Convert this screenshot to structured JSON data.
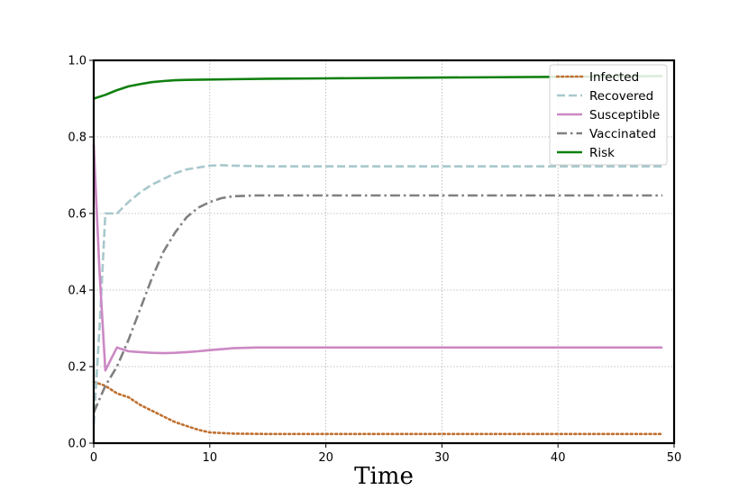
{
  "chart_data": {
    "type": "line",
    "title": "",
    "xlabel": "Time",
    "ylabel": "",
    "xlim": [
      0,
      50
    ],
    "ylim": [
      0,
      1.0
    ],
    "xticks": [
      "0",
      "10",
      "20",
      "30",
      "40",
      "50"
    ],
    "yticks": [
      "0.0",
      "0.2",
      "0.4",
      "0.6",
      "0.8",
      "1.0"
    ],
    "grid": true,
    "legend_position": "top-right",
    "series": [
      {
        "name": "Infected",
        "color": "#c07030",
        "style": "dotted",
        "x": [
          0,
          1,
          2,
          3,
          4,
          5,
          6,
          7,
          8,
          9,
          10,
          12,
          15,
          20,
          30,
          40,
          49
        ],
        "y": [
          0.16,
          0.15,
          0.13,
          0.12,
          0.1,
          0.085,
          0.07,
          0.055,
          0.045,
          0.035,
          0.028,
          0.025,
          0.024,
          0.024,
          0.024,
          0.024,
          0.024
        ]
      },
      {
        "name": "Recovered",
        "color": "#a8c8cc",
        "style": "dashed",
        "x": [
          0,
          0.5,
          1,
          2,
          3,
          4,
          5,
          6,
          7,
          8,
          9,
          10,
          11,
          12,
          15,
          20,
          30,
          40,
          49
        ],
        "y": [
          0.05,
          0.3,
          0.6,
          0.6,
          0.63,
          0.655,
          0.675,
          0.69,
          0.705,
          0.715,
          0.72,
          0.725,
          0.726,
          0.725,
          0.723,
          0.723,
          0.723,
          0.723,
          0.723
        ]
      },
      {
        "name": "Susceptible",
        "color": "#cc88c4",
        "style": "solid",
        "x": [
          0,
          0.5,
          1,
          1.5,
          2,
          3,
          4,
          5,
          6,
          7,
          8,
          9,
          10,
          12,
          14,
          20,
          30,
          40,
          49
        ],
        "y": [
          0.78,
          0.45,
          0.19,
          0.22,
          0.25,
          0.24,
          0.238,
          0.236,
          0.235,
          0.236,
          0.238,
          0.24,
          0.243,
          0.248,
          0.25,
          0.25,
          0.25,
          0.25,
          0.25
        ]
      },
      {
        "name": "Vaccinated",
        "color": "#808080",
        "style": "dashdot",
        "x": [
          0,
          1,
          2,
          3,
          4,
          5,
          6,
          7,
          8,
          9,
          10,
          11,
          12,
          14,
          20,
          30,
          40,
          49
        ],
        "y": [
          0.08,
          0.15,
          0.2,
          0.27,
          0.35,
          0.43,
          0.5,
          0.55,
          0.59,
          0.615,
          0.63,
          0.64,
          0.645,
          0.647,
          0.647,
          0.647,
          0.647,
          0.647
        ]
      },
      {
        "name": "Risk",
        "color": "#108010",
        "style": "solid",
        "x": [
          0,
          1,
          2,
          3,
          4,
          5,
          6,
          7,
          8,
          10,
          15,
          20,
          30,
          40,
          49
        ],
        "y": [
          0.9,
          0.91,
          0.922,
          0.932,
          0.938,
          0.943,
          0.946,
          0.948,
          0.949,
          0.95,
          0.952,
          0.953,
          0.955,
          0.957,
          0.959
        ]
      }
    ]
  }
}
